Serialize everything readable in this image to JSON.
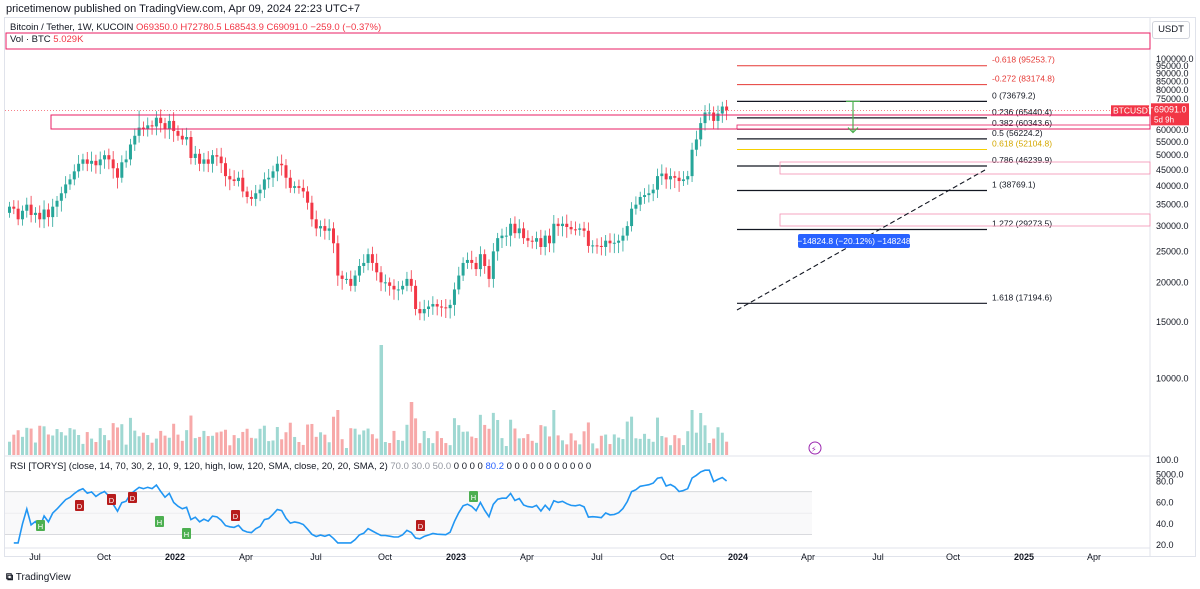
{
  "header": {
    "published_line": "pricetimenow published on TradingView.com, Apr 09, 2024 22:23 UTC+7"
  },
  "legend": {
    "symbol": "Bitcoin / Tether, 1W, KUCOIN",
    "open": "O69350.0",
    "high": "H72780.5",
    "low": "L68543.9",
    "close": "C69091.0",
    "change": "−259.0 (−0.37%)",
    "volume_label": "Vol · BTC",
    "volume_value": "5.029K"
  },
  "rsi_legend": {
    "text": "RSI [TORYS] (close, 14, 70, 30, 2, 10, 9, 120, high, low, 120, SMA, close, 20, 20, SMA, 2)",
    "vals_gray": "70.0  30.0  50.0",
    "vals_a": "0 0 0 0",
    "val_blue": "80.2",
    "vals_b": "0 0 0 0 0 0 0 0 0 0 0"
  },
  "currency_button": "USDT",
  "footer_brand": "TradingView",
  "price_tag": {
    "symbol": "BTCUSDT",
    "price": "69091.0",
    "countdown": "5d 9h"
  },
  "measure_label": "−14824.8 (−20.12%) −148248",
  "colors": {
    "up": "#26a69a",
    "down": "#f23645",
    "rsi_line": "#2196f3",
    "fib_red": "#e53935",
    "fib_gold": "#f5d000",
    "zone_border": "#e91e63",
    "measure_green": "#4caf50",
    "measure_blue": "#2962ff"
  },
  "chart_data": {
    "type": "candlestick",
    "timeframe": "1W",
    "y_axis": {
      "ticks": [
        5000,
        10000,
        15000,
        20000,
        25000,
        30000,
        35000,
        40000,
        45000,
        50000,
        55000,
        60000,
        65000,
        70000,
        75000,
        80000,
        85000,
        90000,
        95000,
        100000
      ],
      "tick_labels": [
        "5000.0",
        "10000.0",
        "15000.0",
        "20000.0",
        "25000.0",
        "30000.0",
        "35000.0",
        "40000.0",
        "45000.0",
        "50000.0",
        "55000.0",
        "60000.0",
        "65000.0",
        "70000.0",
        "75000.0",
        "80000.0",
        "85000.0",
        "90000.0",
        "95000.0",
        "100000.0"
      ]
    },
    "x_axis": {
      "tick_labels": [
        "Jul",
        "Oct",
        "2022",
        "Apr",
        "Jul",
        "Oct",
        "2023",
        "Apr",
        "Jul",
        "Oct",
        "2024",
        "Apr",
        "Jul",
        "Oct",
        "2025",
        "Apr"
      ],
      "tick_dates": [
        "2021-07",
        "2021-10",
        "2022-01",
        "2022-04",
        "2022-07",
        "2022-10",
        "2023-01",
        "2023-04",
        "2023-07",
        "2023-10",
        "2024-01",
        "2024-04",
        "2024-07",
        "2024-10",
        "2025-01",
        "2025-04"
      ]
    },
    "closes": [
      34500,
      34000,
      31500,
      33500,
      35000,
      32500,
      33000,
      31500,
      33800,
      32000,
      34500,
      36000,
      38000,
      40500,
      42000,
      44500,
      47000,
      48500,
      47000,
      48000,
      46500,
      48500,
      50000,
      48500,
      45500,
      42500,
      47500,
      48500,
      54000,
      57500,
      61000,
      60500,
      62000,
      61500,
      65500,
      63000,
      60500,
      64000,
      59500,
      57500,
      56000,
      57000,
      49000,
      50500,
      47000,
      48500,
      47000,
      50000,
      49500,
      47200,
      43000,
      42000,
      41500,
      42500,
      38500,
      37000,
      36500,
      38000,
      39000,
      42000,
      42500,
      44500,
      47000,
      46500,
      42500,
      39500,
      40000,
      39500,
      38500,
      35500,
      31500,
      29500,
      30000,
      29000,
      29500,
      26500,
      21000,
      20500,
      20500,
      19500,
      21000,
      22500,
      23000,
      24500,
      23000,
      21500,
      20000,
      20000,
      19500,
      19000,
      19000,
      19500,
      20500,
      19500,
      16500,
      16000,
      16500,
      16800,
      17100,
      16800,
      16700,
      16600,
      17000,
      19000,
      21000,
      23000,
      23500,
      23000,
      22000,
      24500,
      22500,
      20500,
      25000,
      27500,
      28000,
      28000,
      30500,
      28500,
      29500,
      27500,
      27000,
      26800,
      27500,
      25800,
      28000,
      26500,
      30500,
      30000,
      30500,
      29800,
      29300,
      29200,
      29500,
      29000,
      26000,
      26100,
      26000,
      25800,
      27000,
      26500,
      26600,
      27000,
      28000,
      30000,
      34000,
      35000,
      37000,
      37500,
      38000,
      39000,
      43000,
      43800,
      42000,
      43000,
      42500,
      41500,
      42000,
      43000,
      52000,
      56000,
      63000,
      68000,
      68000,
      64000,
      67500,
      71000,
      69091
    ],
    "volume_note": "weekly volume histogram in BTC (last bar 5.029K)",
    "fibonacci": [
      {
        "label": "-0.618 (95253.7)",
        "value": 95253.7
      },
      {
        "label": "-0.272 (83174.8)",
        "value": 83174.8
      },
      {
        "label": "0 (73679.2)",
        "value": 73679.2
      },
      {
        "label": "0.236 (65440.4)",
        "value": 65440.4
      },
      {
        "label": "0.382 (60343.6)",
        "value": 60343.6
      },
      {
        "label": "0.5 (56224.2)",
        "value": 56224.2
      },
      {
        "label": "0.618 (52104.8)",
        "value": 52104.8
      },
      {
        "label": "0.786 (46239.9)",
        "value": 46239.9
      },
      {
        "label": "1 (38769.1)",
        "value": 38769.1
      },
      {
        "label": "1.272 (29273.5)",
        "value": 29273.5
      },
      {
        "label": "1.618 (17194.6)",
        "value": 17194.6
      }
    ],
    "last_price": 69091.0,
    "rsi": {
      "y_ticks": [
        20,
        40,
        60,
        80,
        100
      ],
      "y_tick_labels": [
        "20.0",
        "40.0",
        "60.0",
        "80.0",
        "100.0"
      ],
      "overbought": 70,
      "oversold": 30,
      "last": 80.2,
      "divergence_labels": [
        "H",
        "D",
        "D",
        "D",
        "H",
        "H",
        "D",
        "D",
        "H"
      ]
    }
  }
}
